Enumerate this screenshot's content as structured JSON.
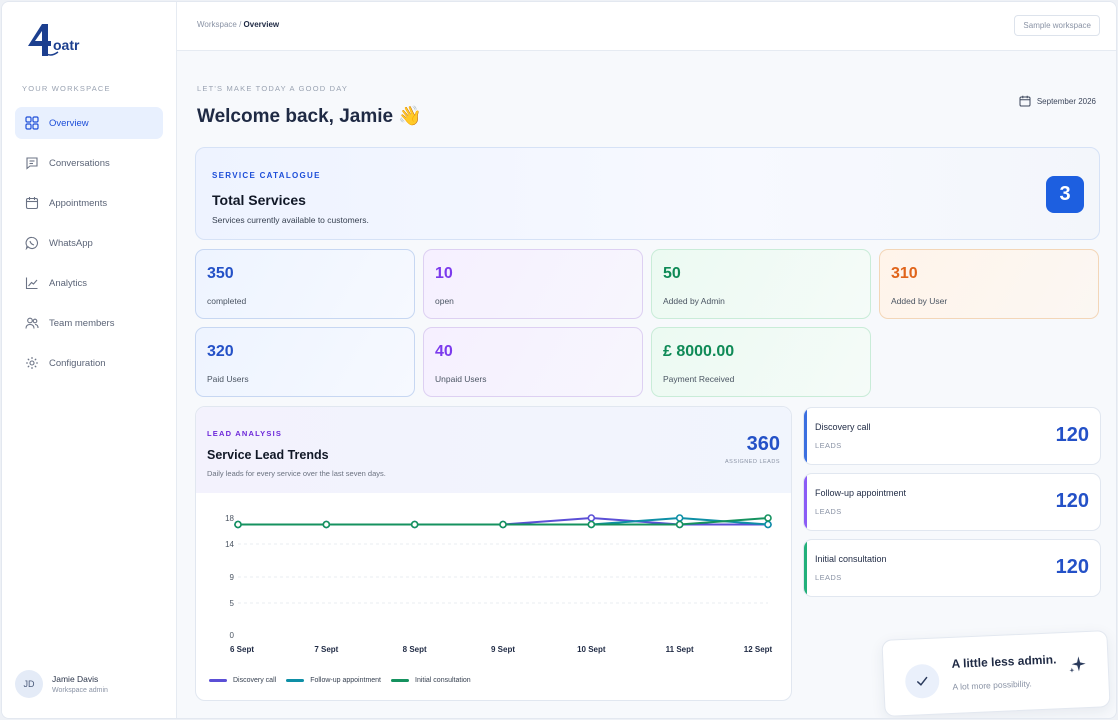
{
  "sidebar": {
    "logo_text": "4oatr",
    "section_label": "YOUR WORKSPACE",
    "items": [
      {
        "label": "Overview",
        "icon": "grid-icon"
      },
      {
        "label": "Conversations",
        "icon": "chat-icon"
      },
      {
        "label": "Appointments",
        "icon": "calendar-icon"
      },
      {
        "label": "WhatsApp",
        "icon": "whatsapp-icon"
      },
      {
        "label": "Analytics",
        "icon": "chart-icon"
      },
      {
        "label": "Team members",
        "icon": "users-icon"
      },
      {
        "label": "Configuration",
        "icon": "gear-icon"
      }
    ],
    "user": {
      "initials": "JD",
      "name": "Jamie Davis",
      "role": "Workspace admin"
    }
  },
  "topbar": {
    "breadcrumb_parent": "Workspace",
    "breadcrumb_sep": " / ",
    "breadcrumb_current": "Overview",
    "workspace_button": "Sample workspace"
  },
  "header": {
    "eyebrow": "LET'S MAKE TODAY A GOOD DAY",
    "welcome": "Welcome back, Jamie 👋",
    "date": "September 2026"
  },
  "catalogue": {
    "eyebrow": "SERVICE CATALOGUE",
    "title": "Total Services",
    "subtitle": "Services currently available to customers.",
    "count": "3"
  },
  "stats": [
    {
      "value": "350",
      "label": "completed",
      "color": "#2451c7"
    },
    {
      "value": "10",
      "label": "open",
      "color": "#7c3aed"
    },
    {
      "value": "50",
      "label": "Added by Admin",
      "color": "#0f8a57"
    },
    {
      "value": "310",
      "label": "Added by User",
      "color": "#e0641b"
    },
    {
      "value": "320",
      "label": "Paid Users",
      "color": "#2451c7"
    },
    {
      "value": "40",
      "label": "Unpaid Users",
      "color": "#7c3aed"
    },
    {
      "value": "£ 8000.00",
      "label": "Payment Received",
      "color": "#0f8a57"
    }
  ],
  "lead_analysis": {
    "eyebrow": "LEAD ANALYSIS",
    "title": "Service Lead Trends",
    "subtitle": "Daily leads for every service over the last seven days.",
    "total": "360",
    "total_label": "ASSIGNED LEADS"
  },
  "chart_data": {
    "type": "line",
    "x": [
      "6 Sept",
      "7 Sept",
      "8 Sept",
      "9 Sept",
      "10 Sept",
      "11 Sept",
      "12 Sept"
    ],
    "yticks": [
      0,
      5,
      9,
      14,
      18
    ],
    "series": [
      {
        "name": "Discovery call",
        "color": "#5b4fd6",
        "values": [
          17,
          17,
          17,
          17,
          18,
          17,
          17
        ]
      },
      {
        "name": "Follow-up appointment",
        "color": "#0e8fa6",
        "values": [
          17,
          17,
          17,
          17,
          17,
          18,
          17
        ]
      },
      {
        "name": "Initial consultation",
        "color": "#15925f",
        "values": [
          17,
          17,
          17,
          17,
          17,
          17,
          18
        ]
      }
    ]
  },
  "lead_cards": [
    {
      "title": "Discovery call",
      "sub": "LEADS",
      "value": "120",
      "color": "#3b6fe0"
    },
    {
      "title": "Follow-up appointment",
      "sub": "LEADS",
      "value": "120",
      "color": "#8b5cf6"
    },
    {
      "title": "Initial consultation",
      "sub": "LEADS",
      "value": "120",
      "color": "#22b07a"
    }
  ],
  "toast": {
    "title": "A little less admin.",
    "subtitle": "A lot more possibility."
  }
}
